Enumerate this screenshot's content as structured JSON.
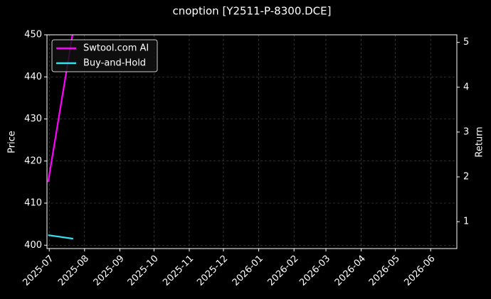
{
  "chart_data": {
    "type": "line",
    "title": "cnoption [Y2511-P-8300.DCE]",
    "ylabel": "Price",
    "y2label": "Return",
    "xlim": [
      "2025-06-29",
      "2026-06-24"
    ],
    "xticks": [
      {
        "value": "2025-07-01",
        "label": "2025-07"
      },
      {
        "value": "2025-08-01",
        "label": "2025-08"
      },
      {
        "value": "2025-09-01",
        "label": "2025-09"
      },
      {
        "value": "2025-10-01",
        "label": "2025-10"
      },
      {
        "value": "2025-11-01",
        "label": "2025-11"
      },
      {
        "value": "2025-12-01",
        "label": "2025-12"
      },
      {
        "value": "2026-01-01",
        "label": "2026-01"
      },
      {
        "value": "2026-02-01",
        "label": "2026-02"
      },
      {
        "value": "2026-03-01",
        "label": "2026-03"
      },
      {
        "value": "2026-04-01",
        "label": "2026-04"
      },
      {
        "value": "2026-05-01",
        "label": "2026-05"
      },
      {
        "value": "2026-06-01",
        "label": "2026-06"
      }
    ],
    "ylim": [
      399.2,
      450
    ],
    "yticks": [
      400,
      410,
      420,
      430,
      440,
      450
    ],
    "y2lim": [
      0.4,
      5.17
    ],
    "y2ticks": [
      1,
      2,
      3,
      4,
      5
    ],
    "grid": true,
    "legend": "upper-left",
    "x": [
      "2025-06-30",
      "2025-07-22"
    ],
    "series": [
      {
        "name": "Swtool.com AI",
        "color": "#ff00ff",
        "values": [
          415,
          451
        ]
      },
      {
        "name": "Buy-and-Hold",
        "color": "#33e0f0",
        "axis": "y2",
        "values": [
          0.7,
          0.62
        ]
      }
    ]
  }
}
